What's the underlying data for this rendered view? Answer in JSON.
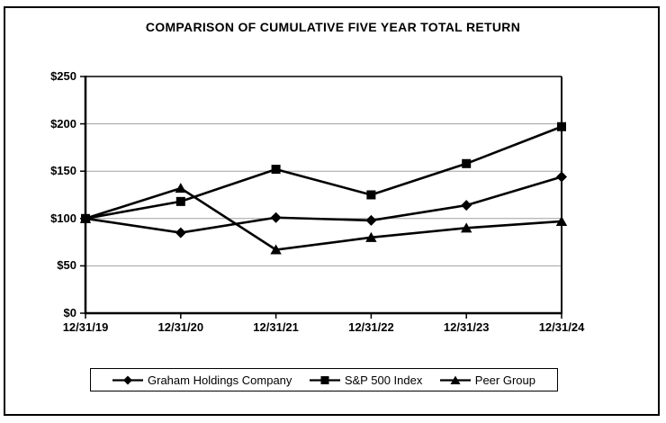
{
  "title": "COMPARISON OF CUMULATIVE FIVE YEAR TOTAL RETURN",
  "chart_data": {
    "type": "line",
    "title": "COMPARISON OF CUMULATIVE FIVE YEAR TOTAL RETURN",
    "categories": [
      "12/31/19",
      "12/31/20",
      "12/31/21",
      "12/31/22",
      "12/31/23",
      "12/31/24"
    ],
    "series": [
      {
        "name": "Graham Holdings Company",
        "marker": "diamond",
        "values": [
          100,
          85,
          101,
          98,
          114,
          144
        ]
      },
      {
        "name": "S&P 500 Index",
        "marker": "square",
        "values": [
          100,
          118,
          152,
          125,
          158,
          197
        ]
      },
      {
        "name": "Peer Group",
        "marker": "triangle",
        "values": [
          100,
          132,
          67,
          80,
          90,
          97
        ]
      }
    ],
    "y_axis": {
      "min": 0,
      "max": 250,
      "tick_step": 50,
      "tick_labels": [
        "$0",
        "$50",
        "$100",
        "$150",
        "$200",
        "$250"
      ]
    },
    "xlabel": "",
    "ylabel": "",
    "grid": "horizontal",
    "legend_position": "bottom",
    "colors": {
      "line": "#000000",
      "grid": "#a0a0a0",
      "text": "#000000",
      "background": "#ffffff"
    }
  }
}
